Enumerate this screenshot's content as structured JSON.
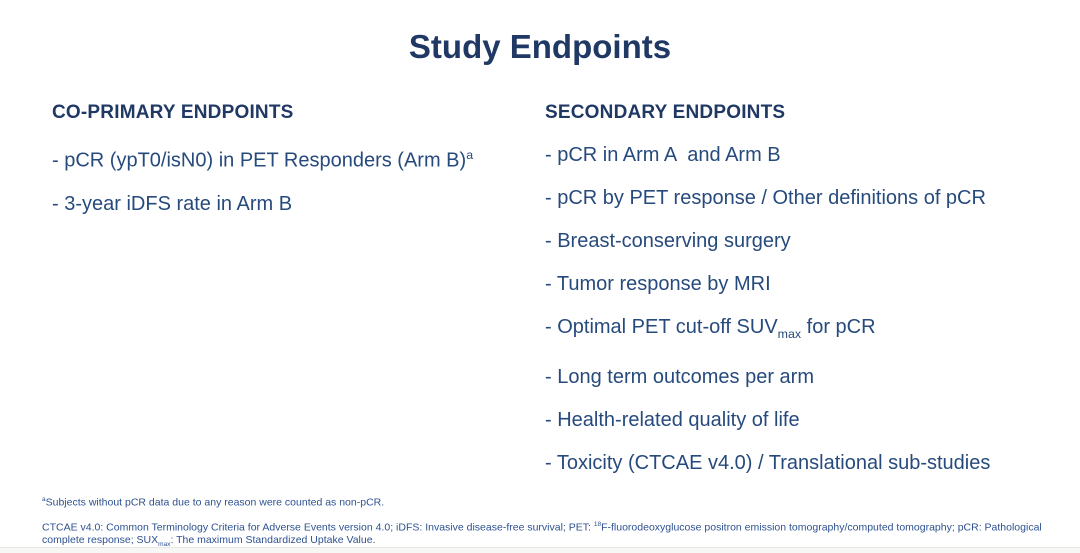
{
  "slide": {
    "title": "Study Endpoints",
    "colors": {
      "title_navy": "#1f3864",
      "body_navy": "#274a7d",
      "footnote_blue": "#2d5190"
    }
  },
  "primary": {
    "heading": "CO-PRIMARY ENDPOINTS",
    "bullets": [
      {
        "text": "- pCR (ypT0/isN0) in PET Responders (Arm B)",
        "sup": "a"
      },
      "- 3-year iDFS rate in Arm B"
    ]
  },
  "secondary": {
    "heading": "SECONDARY ENDPOINTS",
    "bullets": [
      "- pCR in Arm A  and Arm B",
      "- pCR by PET response / Other definitions of pCR",
      "- Breast-conserving surgery",
      "- Tumor response by MRI",
      {
        "pre": "- Optimal PET cut-off SUV",
        "sub": "max",
        "post": " for pCR"
      },
      "- Long term outcomes per arm",
      "- Health-related quality of life",
      "- Toxicity (CTCAE v4.0) / Translational sub-studies"
    ]
  },
  "footnotes": {
    "note_a": {
      "sup": "a",
      "text": "Subjects without pCR data due to any reason were counted as non-pCR."
    },
    "abbrev": {
      "part1": "CTCAE v4.0: Common Terminology Criteria for Adverse Events version 4.0; iDFS: Invasive disease-free survival; PET: ",
      "sup1": "18",
      "part2": "F-fluorodeoxyglucose positron emission tomography/computed tomography; pCR: Pathological complete response; SUX",
      "sub1": "max",
      "part3": ": The maximum Standardized Uptake Value."
    }
  }
}
